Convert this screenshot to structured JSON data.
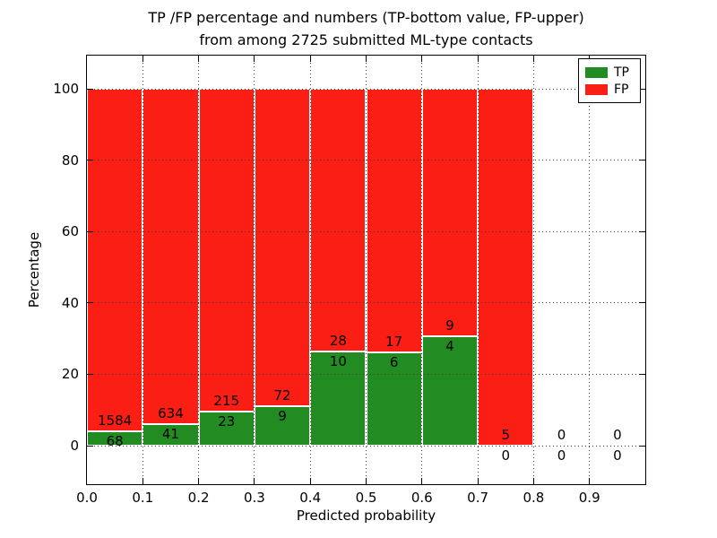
{
  "title": {
    "line1": "TP /FP percentage and numbers (TP-bottom value, FP-upper)",
    "line2": "from among 2725 submitted ML-type contacts"
  },
  "axes": {
    "xlabel": "Predicted probability",
    "ylabel": "Percentage",
    "x_tick_labels": [
      "0.0",
      "0.1",
      "0.2",
      "0.3",
      "0.4",
      "0.5",
      "0.6",
      "0.7",
      "0.8",
      "0.9"
    ],
    "x_tick_values": [
      0.0,
      0.1,
      0.2,
      0.3,
      0.4,
      0.5,
      0.6,
      0.7,
      0.8,
      0.9
    ],
    "y_tick_labels": [
      "0",
      "20",
      "40",
      "60",
      "80",
      "100"
    ],
    "y_tick_values": [
      0,
      20,
      40,
      60,
      80,
      100
    ],
    "xlim": [
      0.0,
      1.0
    ],
    "ylim": [
      -10.8,
      109.3
    ],
    "grid_style": "dotted"
  },
  "legend": {
    "position": "upper-right",
    "items": [
      {
        "label": "TP",
        "color": "#228b22"
      },
      {
        "label": "FP",
        "color": "#fb1e15"
      }
    ]
  },
  "chart_data": {
    "type": "bar",
    "stacked": true,
    "normalized_to_percent": 100,
    "title": "TP /FP percentage and numbers (TP-bottom value, FP-upper) from among 2725 submitted ML-type contacts",
    "xlabel": "Predicted probability",
    "ylabel": "Percentage",
    "bin_starts": [
      0.0,
      0.1,
      0.2,
      0.3,
      0.4,
      0.5,
      0.6,
      0.7,
      0.8,
      0.9
    ],
    "bin_width": 0.1,
    "series": [
      {
        "name": "TP",
        "color": "#228b22",
        "counts": [
          68,
          41,
          23,
          9,
          10,
          6,
          4,
          0,
          0,
          0
        ]
      },
      {
        "name": "FP",
        "color": "#fb1e15",
        "counts": [
          1584,
          634,
          215,
          72,
          28,
          17,
          9,
          5,
          0,
          0
        ]
      }
    ],
    "tp_percent_of_bin": [
      4.12,
      6.07,
      9.66,
      11.11,
      26.32,
      26.09,
      30.77,
      0,
      0,
      0
    ],
    "total_contacts": 2725,
    "xlim": [
      0.0,
      1.0
    ],
    "ylim": [
      -10.8,
      109.3
    ],
    "legend_position": "upper-right",
    "grid": true
  },
  "colors": {
    "tp_green": "#228b22",
    "fp_red": "#fb1e15",
    "background": "#ffffff",
    "text": "#000000",
    "bar_edge": "#ffffff"
  }
}
